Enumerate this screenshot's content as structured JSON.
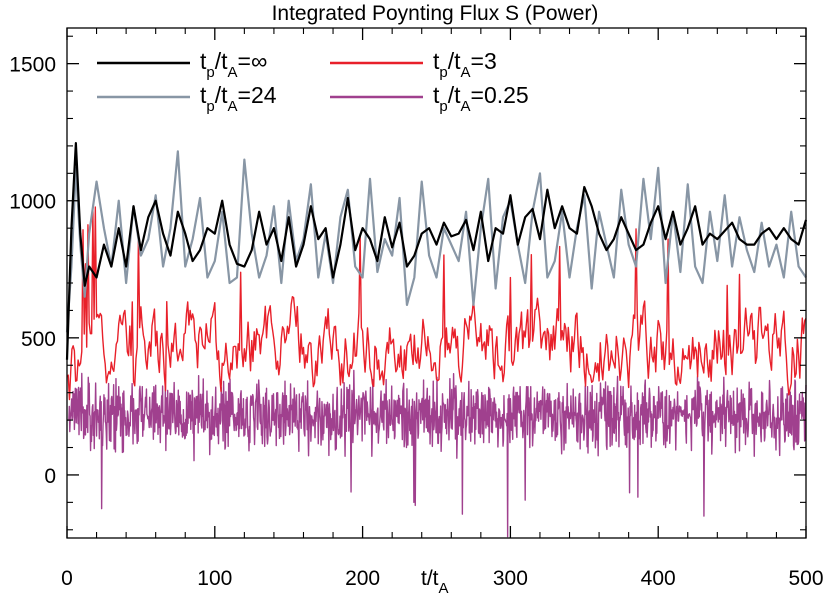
{
  "chart_data": {
    "type": "line",
    "title": "Integrated Poynting Flux S (Power)",
    "xlabel": {
      "base": "t/t",
      "sub": "A"
    },
    "ylabel": "",
    "xlim": [
      0,
      500
    ],
    "ylim": [
      -230,
      1630
    ],
    "xticks": [
      0,
      100,
      200,
      300,
      400,
      500
    ],
    "xtick_labels": [
      "0",
      "100",
      "200",
      "300",
      "400",
      "500"
    ],
    "yticks": [
      0,
      500,
      1000,
      1500
    ],
    "ytick_labels": [
      "0",
      "500",
      "1000",
      "1500"
    ],
    "grid": false,
    "legend": {
      "placement": "top-left",
      "columns": 2
    },
    "series": [
      {
        "name": "tp/tA=∞",
        "legend_label": {
          "t": "t",
          "p": "p",
          "slash": "/t",
          "A": "A",
          "rest": "=∞"
        },
        "color": "#000000",
        "x": [
          0,
          3,
          6,
          9,
          12,
          15,
          20,
          25,
          30,
          35,
          40,
          45,
          50,
          55,
          60,
          65,
          70,
          75,
          80,
          85,
          90,
          95,
          100,
          105,
          110,
          115,
          120,
          125,
          130,
          135,
          140,
          145,
          150,
          155,
          160,
          165,
          170,
          175,
          180,
          185,
          190,
          195,
          200,
          205,
          210,
          215,
          220,
          225,
          230,
          235,
          240,
          245,
          250,
          255,
          260,
          265,
          270,
          275,
          280,
          285,
          290,
          295,
          300,
          305,
          310,
          315,
          320,
          325,
          330,
          335,
          340,
          345,
          350,
          355,
          360,
          365,
          370,
          375,
          380,
          385,
          390,
          395,
          400,
          405,
          410,
          415,
          420,
          425,
          430,
          435,
          440,
          445,
          450,
          455,
          460,
          465,
          470,
          475,
          480,
          485,
          490,
          495,
          500
        ],
        "values": [
          420,
          900,
          1210,
          880,
          690,
          760,
          720,
          840,
          760,
          900,
          760,
          980,
          820,
          940,
          1000,
          880,
          800,
          960,
          880,
          780,
          820,
          900,
          880,
          1000,
          840,
          770,
          760,
          820,
          960,
          840,
          900,
          780,
          940,
          760,
          840,
          980,
          860,
          900,
          720,
          840,
          1010,
          820,
          900,
          860,
          780,
          940,
          830,
          920,
          760,
          800,
          880,
          900,
          840,
          920,
          870,
          880,
          930,
          820,
          960,
          780,
          900,
          880,
          1020,
          840,
          940,
          970,
          860,
          1040,
          900,
          980,
          900,
          880,
          1050,
          980,
          880,
          820,
          860,
          940,
          880,
          820,
          840,
          920,
          980,
          860,
          960,
          840,
          900,
          980,
          840,
          880,
          860,
          890,
          920,
          860,
          840,
          840,
          880,
          900,
          860,
          900,
          860,
          840,
          930
        ]
      },
      {
        "name": "tp/tA=24",
        "legend_label": {
          "t": "t",
          "p": "p",
          "slash": "/t",
          "A": "A",
          "rest": "=24"
        },
        "color": "#8896a5",
        "x": [
          0,
          3,
          6,
          9,
          12,
          15,
          20,
          25,
          30,
          35,
          40,
          45,
          50,
          55,
          60,
          65,
          70,
          75,
          80,
          85,
          90,
          95,
          100,
          105,
          110,
          115,
          120,
          125,
          130,
          135,
          140,
          145,
          150,
          155,
          160,
          165,
          170,
          175,
          180,
          185,
          190,
          195,
          200,
          205,
          210,
          215,
          220,
          225,
          230,
          235,
          240,
          245,
          250,
          255,
          260,
          265,
          270,
          275,
          280,
          285,
          290,
          295,
          300,
          305,
          310,
          315,
          320,
          325,
          330,
          335,
          340,
          345,
          350,
          355,
          360,
          365,
          370,
          375,
          380,
          385,
          390,
          395,
          400,
          405,
          410,
          415,
          420,
          425,
          430,
          435,
          440,
          445,
          450,
          455,
          460,
          465,
          470,
          475,
          480,
          485,
          490,
          495,
          500
        ],
        "values": [
          520,
          760,
          1120,
          840,
          650,
          880,
          1070,
          900,
          760,
          1000,
          700,
          980,
          800,
          860,
          1020,
          760,
          900,
          1180,
          760,
          860,
          1010,
          720,
          780,
          960,
          700,
          720,
          1150,
          880,
          720,
          800,
          980,
          700,
          1000,
          780,
          860,
          1060,
          720,
          880,
          700,
          940,
          1040,
          760,
          720,
          1080,
          740,
          860,
          800,
          1010,
          620,
          720,
          1070,
          800,
          720,
          900,
          840,
          780,
          960,
          620,
          900,
          1080,
          680,
          940,
          1000,
          840,
          700,
          960,
          1100,
          720,
          780,
          960,
          720,
          900,
          1020,
          680,
          960,
          840,
          720,
          1040,
          840,
          760,
          1080,
          860,
          1120,
          700,
          960,
          740,
          1060,
          760,
          700,
          960,
          780,
          1020,
          760,
          940,
          820,
          740,
          920,
          760,
          840,
          720,
          960,
          760,
          720
        ]
      },
      {
        "name": "tp/tA=3",
        "legend_label": {
          "t": "t",
          "p": "p",
          "slash": "/t",
          "A": "A",
          "rest": "=3"
        },
        "color": "#e8202a",
        "x_start": 0,
        "x_end": 500,
        "count": 601,
        "mean_profile": {
          "x": [
            0,
            10,
            20,
            100,
            200,
            300,
            400,
            500
          ],
          "y": [
            300,
            420,
            470,
            480,
            460,
            470,
            460,
            470
          ]
        },
        "amplitude": 130,
        "values": []
      },
      {
        "name": "tp/tA=0.25",
        "legend_label": {
          "t": "t",
          "p": "p",
          "slash": "/t",
          "A": "A",
          "rest": "=0.25"
        },
        "color": "#a0408e",
        "x_start": 0,
        "x_end": 500,
        "count": 1601,
        "mean": 215,
        "amplitude": 180,
        "values": []
      }
    ]
  }
}
